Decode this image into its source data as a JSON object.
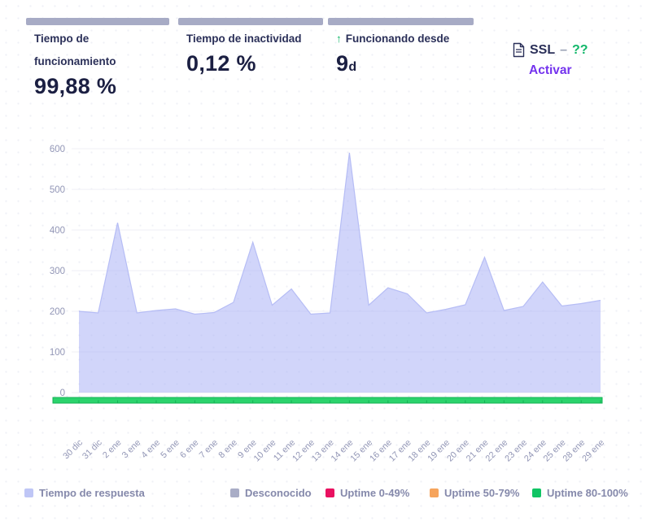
{
  "header": {
    "uptime_card": {
      "label": "Tiempo de funcionamiento",
      "value": "99,88 %"
    },
    "downtime_card": {
      "label": "Tiempo de inactividad",
      "value": "0,12 %"
    },
    "since_card": {
      "label": "Funcionando desde",
      "arrow": "↑",
      "value": "9",
      "unit": "d"
    },
    "ssl": {
      "label": "SSL",
      "separator": "–",
      "status": "??",
      "action_label": "Activar"
    }
  },
  "chart_data": {
    "type": "area",
    "title": "",
    "xlabel": "",
    "ylabel": "",
    "x_labels": [
      "30 dic",
      "31 dic",
      "2 ene",
      "3 ene",
      "4 ene",
      "5 ene",
      "6 ene",
      "7 ene",
      "8 ene",
      "9 ene",
      "10 ene",
      "11 ene",
      "12 ene",
      "13 ene",
      "14 ene",
      "15 ene",
      "16 ene",
      "17 ene",
      "18 ene",
      "19 ene",
      "20 ene",
      "21 ene",
      "22 ene",
      "23 ene",
      "24 ene",
      "25 ene",
      "28 ene",
      "29 ene"
    ],
    "series": [
      {
        "name": "Tiempo de respuesta",
        "values": [
          200,
          196,
          418,
          196,
          202,
          206,
          193,
          197,
          222,
          370,
          215,
          255,
          193,
          196,
          590,
          215,
          258,
          243,
          196,
          205,
          216,
          333,
          202,
          212,
          272,
          213,
          219,
          227
        ]
      }
    ],
    "ylim": [
      0,
      600
    ],
    "yticks": [
      0,
      100,
      200,
      300,
      400,
      500,
      600
    ],
    "grid": true,
    "legend_position": "bottom",
    "area_fill": "rgba(163,172,246,0.5)",
    "area_stroke": "#b6bdf5",
    "grid_color": "#efeff5",
    "axis_text_color": "#9296b6",
    "uptime_bar": {
      "label": "Uptime 80-100%",
      "fill": "#2bd36c",
      "border": "#14b155"
    }
  },
  "legend": [
    {
      "label": "Tiempo de respuesta",
      "color": "#bfc6f6"
    },
    {
      "label": "Desconocido",
      "color": "#a9adc6"
    },
    {
      "label": "Uptime 0-49%",
      "color": "#e91160"
    },
    {
      "label": "Uptime 50-79%",
      "color": "#f6a45c"
    },
    {
      "label": "Uptime 80-100%",
      "color": "#10c464"
    }
  ],
  "colors": {
    "text_dark": "#1b1f42",
    "text_label": "#2a2f58",
    "bar_gray": "#a7abc5",
    "accent_purple": "#7433ee",
    "accent_green": "#12b76a"
  }
}
